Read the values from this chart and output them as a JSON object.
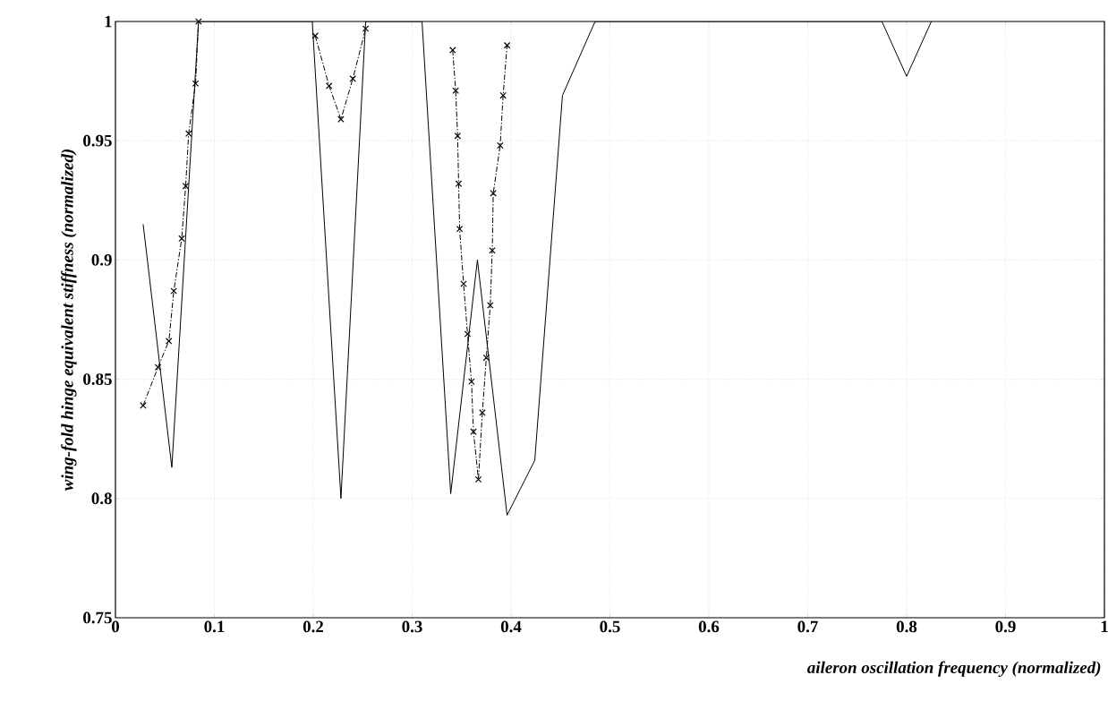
{
  "chart_data": {
    "type": "line",
    "xlabel": "aileron oscillation frequency (normalized)",
    "ylabel": "wing-fold hinge equivalent stiffness (normalized)",
    "xlim": [
      0,
      1
    ],
    "ylim": [
      0.75,
      1
    ],
    "xticks": [
      0,
      0.1,
      0.2,
      0.3,
      0.4,
      0.5,
      0.6,
      0.7,
      0.8,
      0.9,
      1
    ],
    "yticks": [
      0.75,
      0.8,
      0.85,
      0.9,
      0.95,
      1
    ],
    "grid": true,
    "series": [
      {
        "color": "#000000",
        "marker": "none",
        "line_style": "solid",
        "x": [
          0.028,
          0.057,
          0.084,
          0.199,
          0.228,
          0.253,
          0.31,
          0.339,
          0.366,
          0.396,
          0.424,
          0.452,
          0.485,
          0.775,
          0.8,
          0.825
        ],
        "values": [
          0.915,
          0.813,
          1.0,
          1.0,
          0.8,
          1.0,
          1.0,
          0.802,
          0.9,
          0.793,
          0.816,
          0.969,
          1.0,
          1.0,
          0.977,
          1.0
        ]
      },
      {
        "color": "#000000",
        "marker": "cross",
        "line_style": "dashed",
        "x": [
          0.028,
          0.043,
          0.054,
          0.059,
          0.067,
          0.071,
          0.074,
          0.081,
          0.084,
          0.14,
          0.202,
          0.216,
          0.228,
          0.24,
          0.253,
          0.3,
          0.341,
          0.344,
          0.346,
          0.347,
          0.348,
          0.352,
          0.356,
          0.36,
          0.362,
          0.367,
          0.371,
          0.375,
          0.379,
          0.381,
          0.382,
          0.389,
          0.392,
          0.396
        ],
        "values": [
          0.839,
          0.855,
          0.866,
          0.887,
          0.909,
          0.931,
          0.953,
          0.974,
          1.0,
          null,
          0.994,
          0.973,
          0.959,
          0.976,
          0.997,
          null,
          0.988,
          0.971,
          0.952,
          0.932,
          0.913,
          0.89,
          0.869,
          0.849,
          0.828,
          0.808,
          0.836,
          0.859,
          0.881,
          0.904,
          0.928,
          0.948,
          0.969,
          0.99
        ]
      }
    ]
  }
}
